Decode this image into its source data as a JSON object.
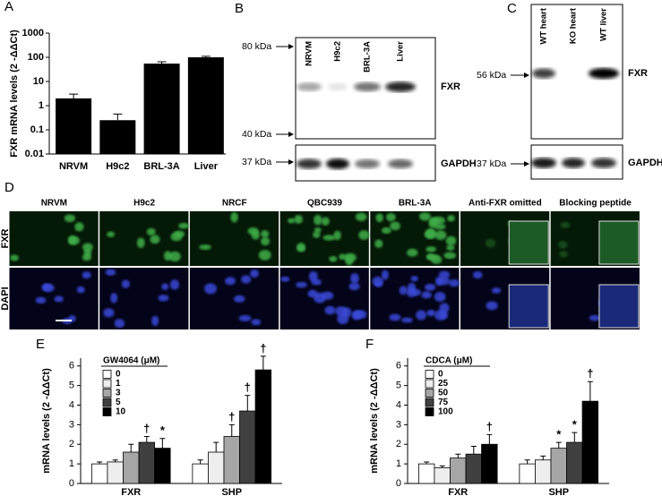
{
  "chart_data": [
    {
      "type": "logbar",
      "panel": "A",
      "ylabel": "FXR mRNA levels (2 -ΔΔCt)",
      "categories": [
        "NRVM",
        "H9c2",
        "BRL-3A",
        "Liver"
      ],
      "values": [
        2,
        0.25,
        55,
        100
      ],
      "errors": [
        1,
        0.2,
        10,
        10
      ],
      "color": "#000000",
      "log_scale": true,
      "ylim": [
        0.01,
        1000
      ],
      "yticks": [
        0.01,
        0.1,
        1,
        10,
        100,
        1000
      ]
    },
    {
      "type": "groupedbar",
      "panel": "E",
      "ylabel": "mRNA levels (2 -ΔΔCt)",
      "legend_title": "GW4064 (μM)",
      "categories": [
        "FXR",
        "SHP"
      ],
      "ylim": [
        0,
        6.4
      ],
      "yticks": [
        0,
        1,
        2,
        3,
        4,
        5,
        6
      ],
      "series": [
        {
          "name": "0",
          "color": "#ffffff",
          "values": [
            1.0,
            1.0
          ],
          "errors": [
            0.1,
            0.2
          ],
          "significance": [
            null,
            null
          ]
        },
        {
          "name": "1",
          "color": "#eeeeee",
          "values": [
            1.1,
            1.6
          ],
          "errors": [
            0.1,
            0.5
          ],
          "significance": [
            null,
            null
          ]
        },
        {
          "name": "3",
          "color": "#a6a6a6",
          "values": [
            1.6,
            2.4
          ],
          "errors": [
            0.4,
            0.6
          ],
          "significance": [
            null,
            "†"
          ]
        },
        {
          "name": "5",
          "color": "#404040",
          "values": [
            2.1,
            3.7
          ],
          "errors": [
            0.3,
            0.8
          ],
          "significance": [
            "†",
            "†"
          ]
        },
        {
          "name": "10",
          "color": "#000000",
          "values": [
            1.8,
            5.8
          ],
          "errors": [
            0.5,
            0.7
          ],
          "significance": [
            "*",
            "†"
          ]
        }
      ]
    },
    {
      "type": "groupedbar",
      "panel": "F",
      "ylabel": "mRNA levels (2 -ΔΔCt)",
      "legend_title": "CDCA (μM)",
      "categories": [
        "FXR",
        "SHP"
      ],
      "ylim": [
        0,
        6.4
      ],
      "yticks": [
        0,
        1,
        2,
        3,
        4,
        5,
        6
      ],
      "series": [
        {
          "name": "0",
          "color": "#ffffff",
          "values": [
            1.0,
            1.0
          ],
          "errors": [
            0.1,
            0.2
          ],
          "significance": [
            null,
            null
          ]
        },
        {
          "name": "25",
          "color": "#eeeeee",
          "values": [
            0.8,
            1.2
          ],
          "errors": [
            0.1,
            0.2
          ],
          "significance": [
            null,
            null
          ]
        },
        {
          "name": "50",
          "color": "#a6a6a6",
          "values": [
            1.3,
            1.8
          ],
          "errors": [
            0.2,
            0.3
          ],
          "significance": [
            null,
            "*"
          ]
        },
        {
          "name": "75",
          "color": "#404040",
          "values": [
            1.5,
            2.1
          ],
          "errors": [
            0.4,
            0.5
          ],
          "significance": [
            null,
            "*"
          ]
        },
        {
          "name": "100",
          "color": "#000000",
          "values": [
            2.0,
            4.2
          ],
          "errors": [
            0.5,
            1.0
          ],
          "significance": [
            "†",
            "†"
          ]
        }
      ]
    }
  ],
  "blots": [
    {
      "panel": "B",
      "lanes": [
        "NRVM",
        "H9c2",
        "BRL-3A",
        "Liver"
      ],
      "markers": [
        "80 kDa",
        "40 kDa",
        "37 kDa"
      ],
      "bands": [
        "FXR",
        "GAPDH"
      ]
    },
    {
      "panel": "C",
      "lanes": [
        "WT heart",
        "KO heart",
        "WT liver"
      ],
      "markers": [
        "56 kDa",
        "37 kDa"
      ],
      "bands": [
        "FXR",
        "GAPDH"
      ]
    }
  ],
  "microscopy": {
    "panel": "D",
    "columns": [
      "NRVM",
      "H9c2",
      "NRCF",
      "QBC939",
      "BRL-3A",
      "Anti-FXR omitted",
      "Blocking peptide"
    ],
    "rows": [
      "FXR",
      "DAPI"
    ]
  }
}
